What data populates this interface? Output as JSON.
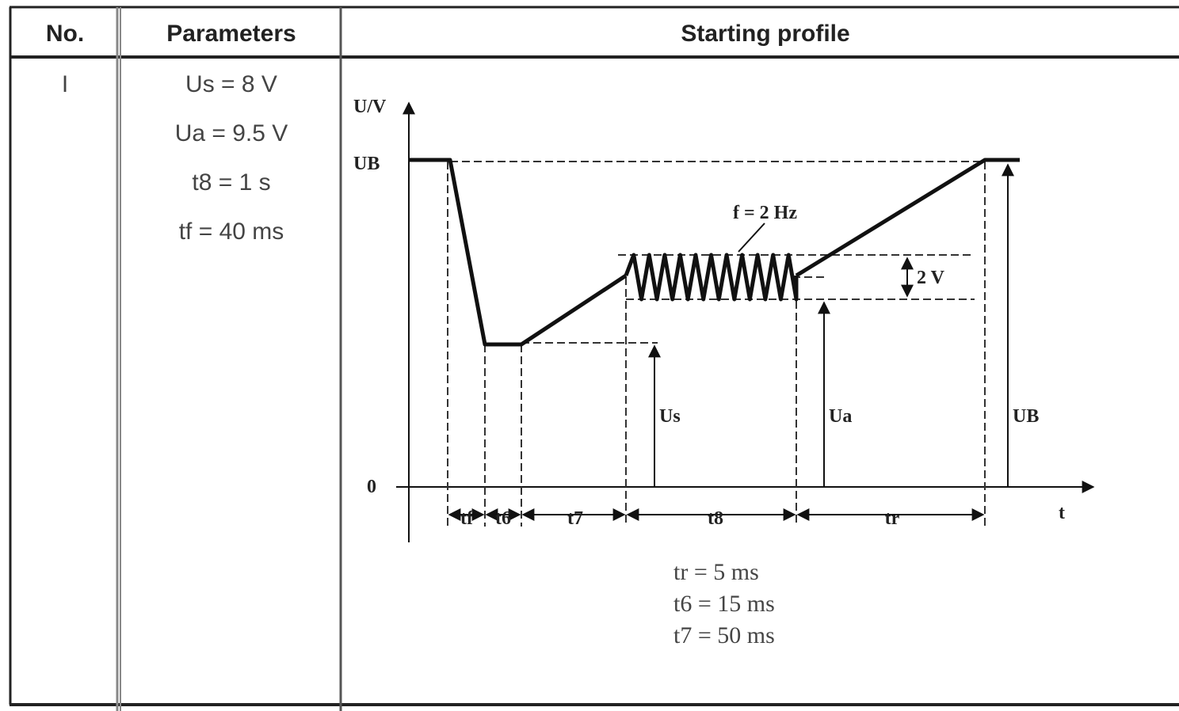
{
  "table": {
    "headers": [
      "No.",
      "Parameters",
      "Starting profile"
    ],
    "row": {
      "no": "I",
      "parameters": [
        "Us = 8 V",
        "Ua = 9.5 V",
        "t8 = 1 s",
        "tf = 40 ms"
      ],
      "profile": {
        "y_axis": "U/V",
        "ub_level": "UB",
        "zero": "0",
        "x_axis": "t",
        "frequency": "f = 2 Hz",
        "amplitude": "2 V",
        "us": "Us",
        "ua": "Ua",
        "ub": "UB",
        "intervals": [
          "tf",
          "t6",
          "t7",
          "t8",
          "tr"
        ],
        "notes": [
          "tr = 5 ms",
          "t6 = 15 ms",
          "t7 = 50 ms"
        ]
      }
    }
  }
}
